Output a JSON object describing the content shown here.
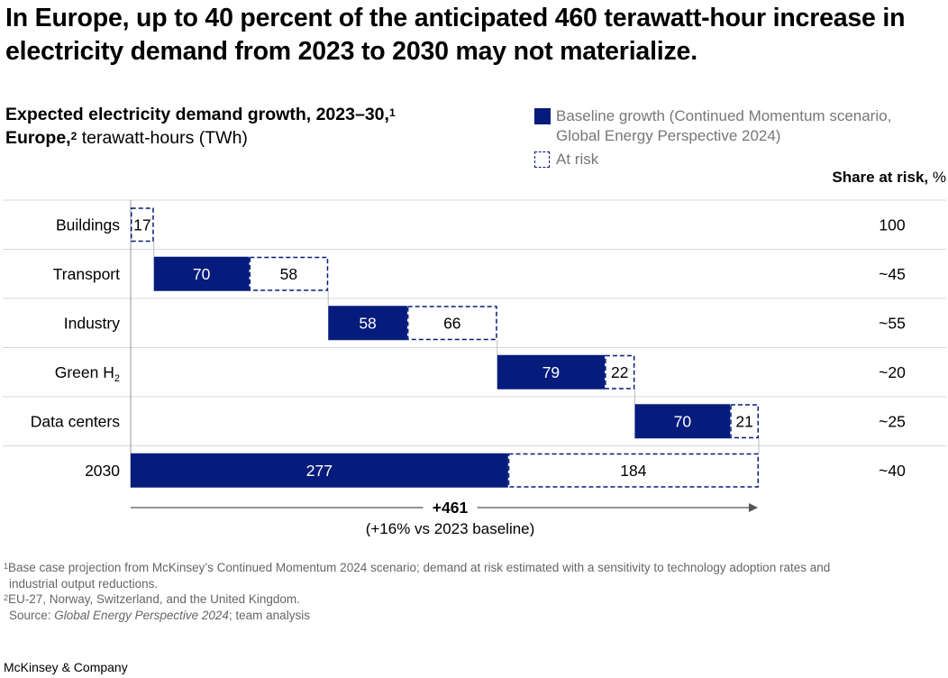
{
  "header": {
    "title": "In Europe, up to 40 percent of the anticipated 460 terawatt-hour increase in electricity demand from 2023 to 2030 may not materialize."
  },
  "subtitle": {
    "line1": "Expected electricity demand growth, 2023–30,",
    "line1_sup": "1",
    "line2_bold": "Europe,",
    "line2_sup": "2",
    "line2_rest": " terawatt-hours (TWh)"
  },
  "legend": {
    "baseline_line1": "Baseline growth (Continued Momentum scenario,",
    "baseline_line2": "Global Energy Perspective 2024)",
    "at_risk": "At risk"
  },
  "share_header": {
    "bold": "Share at risk,",
    "unit": " %"
  },
  "colors": {
    "baseline": "#051c7c",
    "at_risk_border": "#051c7c",
    "gridline": "#d9d9d9",
    "axis": "#999999"
  },
  "chart_data": {
    "type": "bar",
    "subtype": "waterfall",
    "categories": [
      "Buildings",
      "Transport",
      "Industry",
      "Green H",
      "Data centers",
      "2030"
    ],
    "category_subscripts": [
      "",
      "",
      "",
      "2",
      "",
      ""
    ],
    "series": [
      {
        "name": "Baseline growth (Continued Momentum scenario, Global Energy Perspective 2024)",
        "values": [
          0,
          70,
          58,
          79,
          70,
          277
        ]
      },
      {
        "name": "At risk",
        "values": [
          17,
          58,
          66,
          22,
          21,
          184
        ]
      }
    ],
    "share_at_risk": [
      "100",
      "~45",
      "~55",
      "~20",
      "~25",
      "~40"
    ],
    "total_label": "+461",
    "total_sublabel": "(+16% vs 2023 baseline)",
    "xlim": [
      0,
      461
    ]
  },
  "footnotes": {
    "note1_mark": "1",
    "note1": "Base case projection from McKinsey’s Continued Momentum 2024 scenario; demand at risk estimated with a sensitivity to technology adoption rates and",
    "note1_cont": "industrial output reductions.",
    "note2_mark": "2",
    "note2": "EU-27, Norway, Switzerland, and the United Kingdom.",
    "source_label": "Source: ",
    "source_italic": "Global Energy Perspective 2024",
    "source_rest": "; team analysis"
  },
  "brand": "McKinsey & Company"
}
